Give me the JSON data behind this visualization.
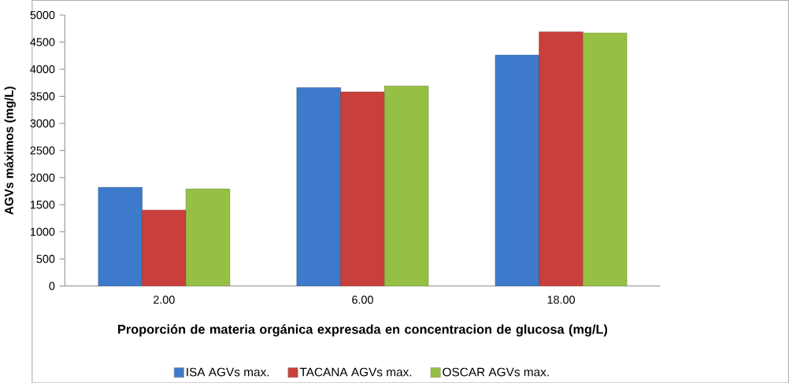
{
  "chart_data": {
    "type": "bar",
    "xlabel": "Proporción de materia orgánica expresada en concentracion de glucosa (mg/L)",
    "ylabel": "AGVs máximos (mg/L)",
    "categories": [
      "2.00",
      "6.00",
      "18.00"
    ],
    "series": [
      {
        "name": "ISA AGVs max.",
        "color": "#3d7acb",
        "values": [
          1820,
          3660,
          4260
        ]
      },
      {
        "name": "TACANA AGVs max.",
        "color": "#c93f3b",
        "values": [
          1400,
          3580,
          4690
        ]
      },
      {
        "name": "OSCAR AGVs max.",
        "color": "#96c044",
        "values": [
          1790,
          3690,
          4670
        ]
      }
    ],
    "ylim": [
      0,
      5000
    ],
    "yticks": [
      0,
      500,
      1000,
      1500,
      2000,
      2500,
      3000,
      3500,
      4000,
      4500,
      5000
    ],
    "legend": "bottom"
  }
}
